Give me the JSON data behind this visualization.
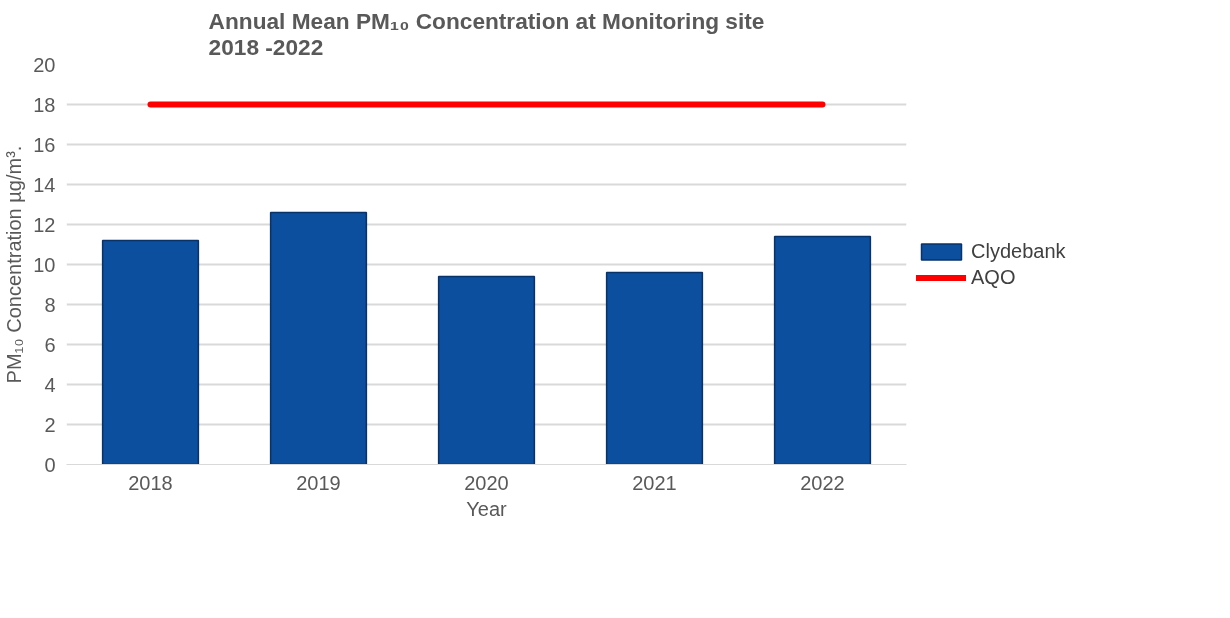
{
  "chart_data": {
    "type": "bar",
    "title": "Annual Mean PM₁₀ Concentration at Monitoring site\n2018 -2022",
    "xlabel": "Year",
    "ylabel": "PM₁₀ Concentration µg/m³.",
    "categories": [
      "2018",
      "2019",
      "2020",
      "2021",
      "2022"
    ],
    "series": [
      {
        "name": "Clydebank",
        "color": "#0b4f9e",
        "values": [
          11.2,
          12.6,
          9.4,
          9.6,
          11.4
        ]
      },
      {
        "name": "AQO",
        "type": "line",
        "color": "#ff0000",
        "values": [
          18,
          18,
          18,
          18,
          18
        ]
      }
    ],
    "ylim": [
      0,
      20
    ],
    "yticks": [
      0,
      2,
      4,
      6,
      8,
      10,
      12,
      14,
      16,
      18,
      20
    ],
    "grid": "y",
    "legend": "right"
  }
}
